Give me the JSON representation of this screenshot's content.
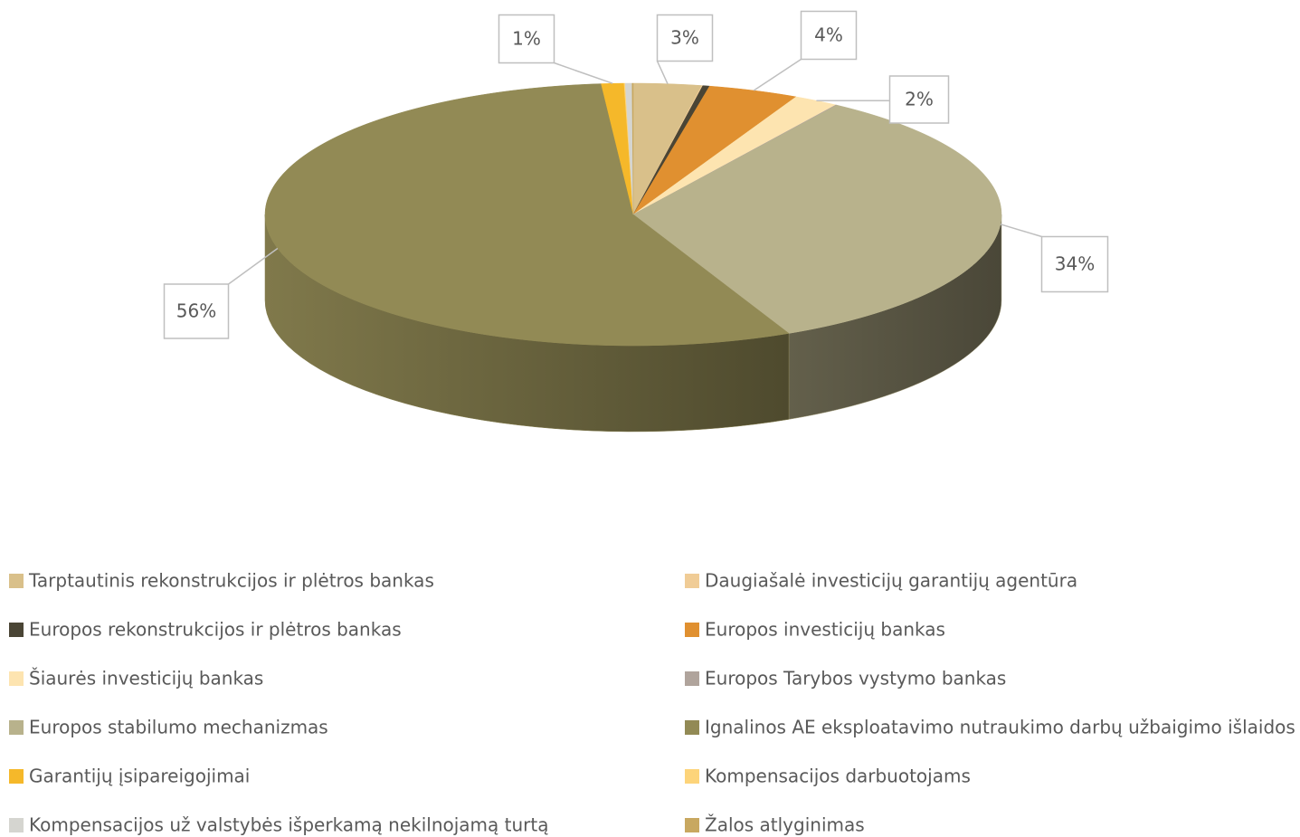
{
  "chart_data": {
    "type": "pie",
    "categories": [
      "Tarptautinis rekonstrukcijos ir plėtros bankas",
      "Daugiašalė investicijų garantijų agentūra",
      "Europos rekonstrukcijos ir plėtros bankas",
      "Europos investicijų bankas",
      "Šiaurės investicijų bankas",
      "Europos Tarybos vystymo bankas",
      "Europos stabilumo mechanizmas",
      "Ignalinos AE eksploatavimo nutraukimo darbų užbaigimo išlaidos",
      "Garantijų įsipareigojimai",
      "Kompensacijos darbuotojams",
      "Kompensacijos už valstybės išperkamą nekilnojamą turtą",
      "Žalos atlyginimas"
    ],
    "values": [
      3,
      0.05,
      0.3,
      4,
      2,
      0.05,
      34,
      56,
      1,
      0.05,
      0.3,
      0.05
    ],
    "value_labels": [
      "3%",
      null,
      null,
      "4%",
      "2%",
      null,
      "34%",
      "56%",
      "1%",
      null,
      null,
      null
    ],
    "colors": [
      "#d9c08a",
      "#f0cc96",
      "#4a4535",
      "#e09030",
      "#fde4b0",
      "#b0a49c",
      "#b8b28c",
      "#928a55",
      "#f5b82a",
      "#fdd47a",
      "#d5d5d0",
      "#c8a860"
    ],
    "legend": "bottom"
  }
}
